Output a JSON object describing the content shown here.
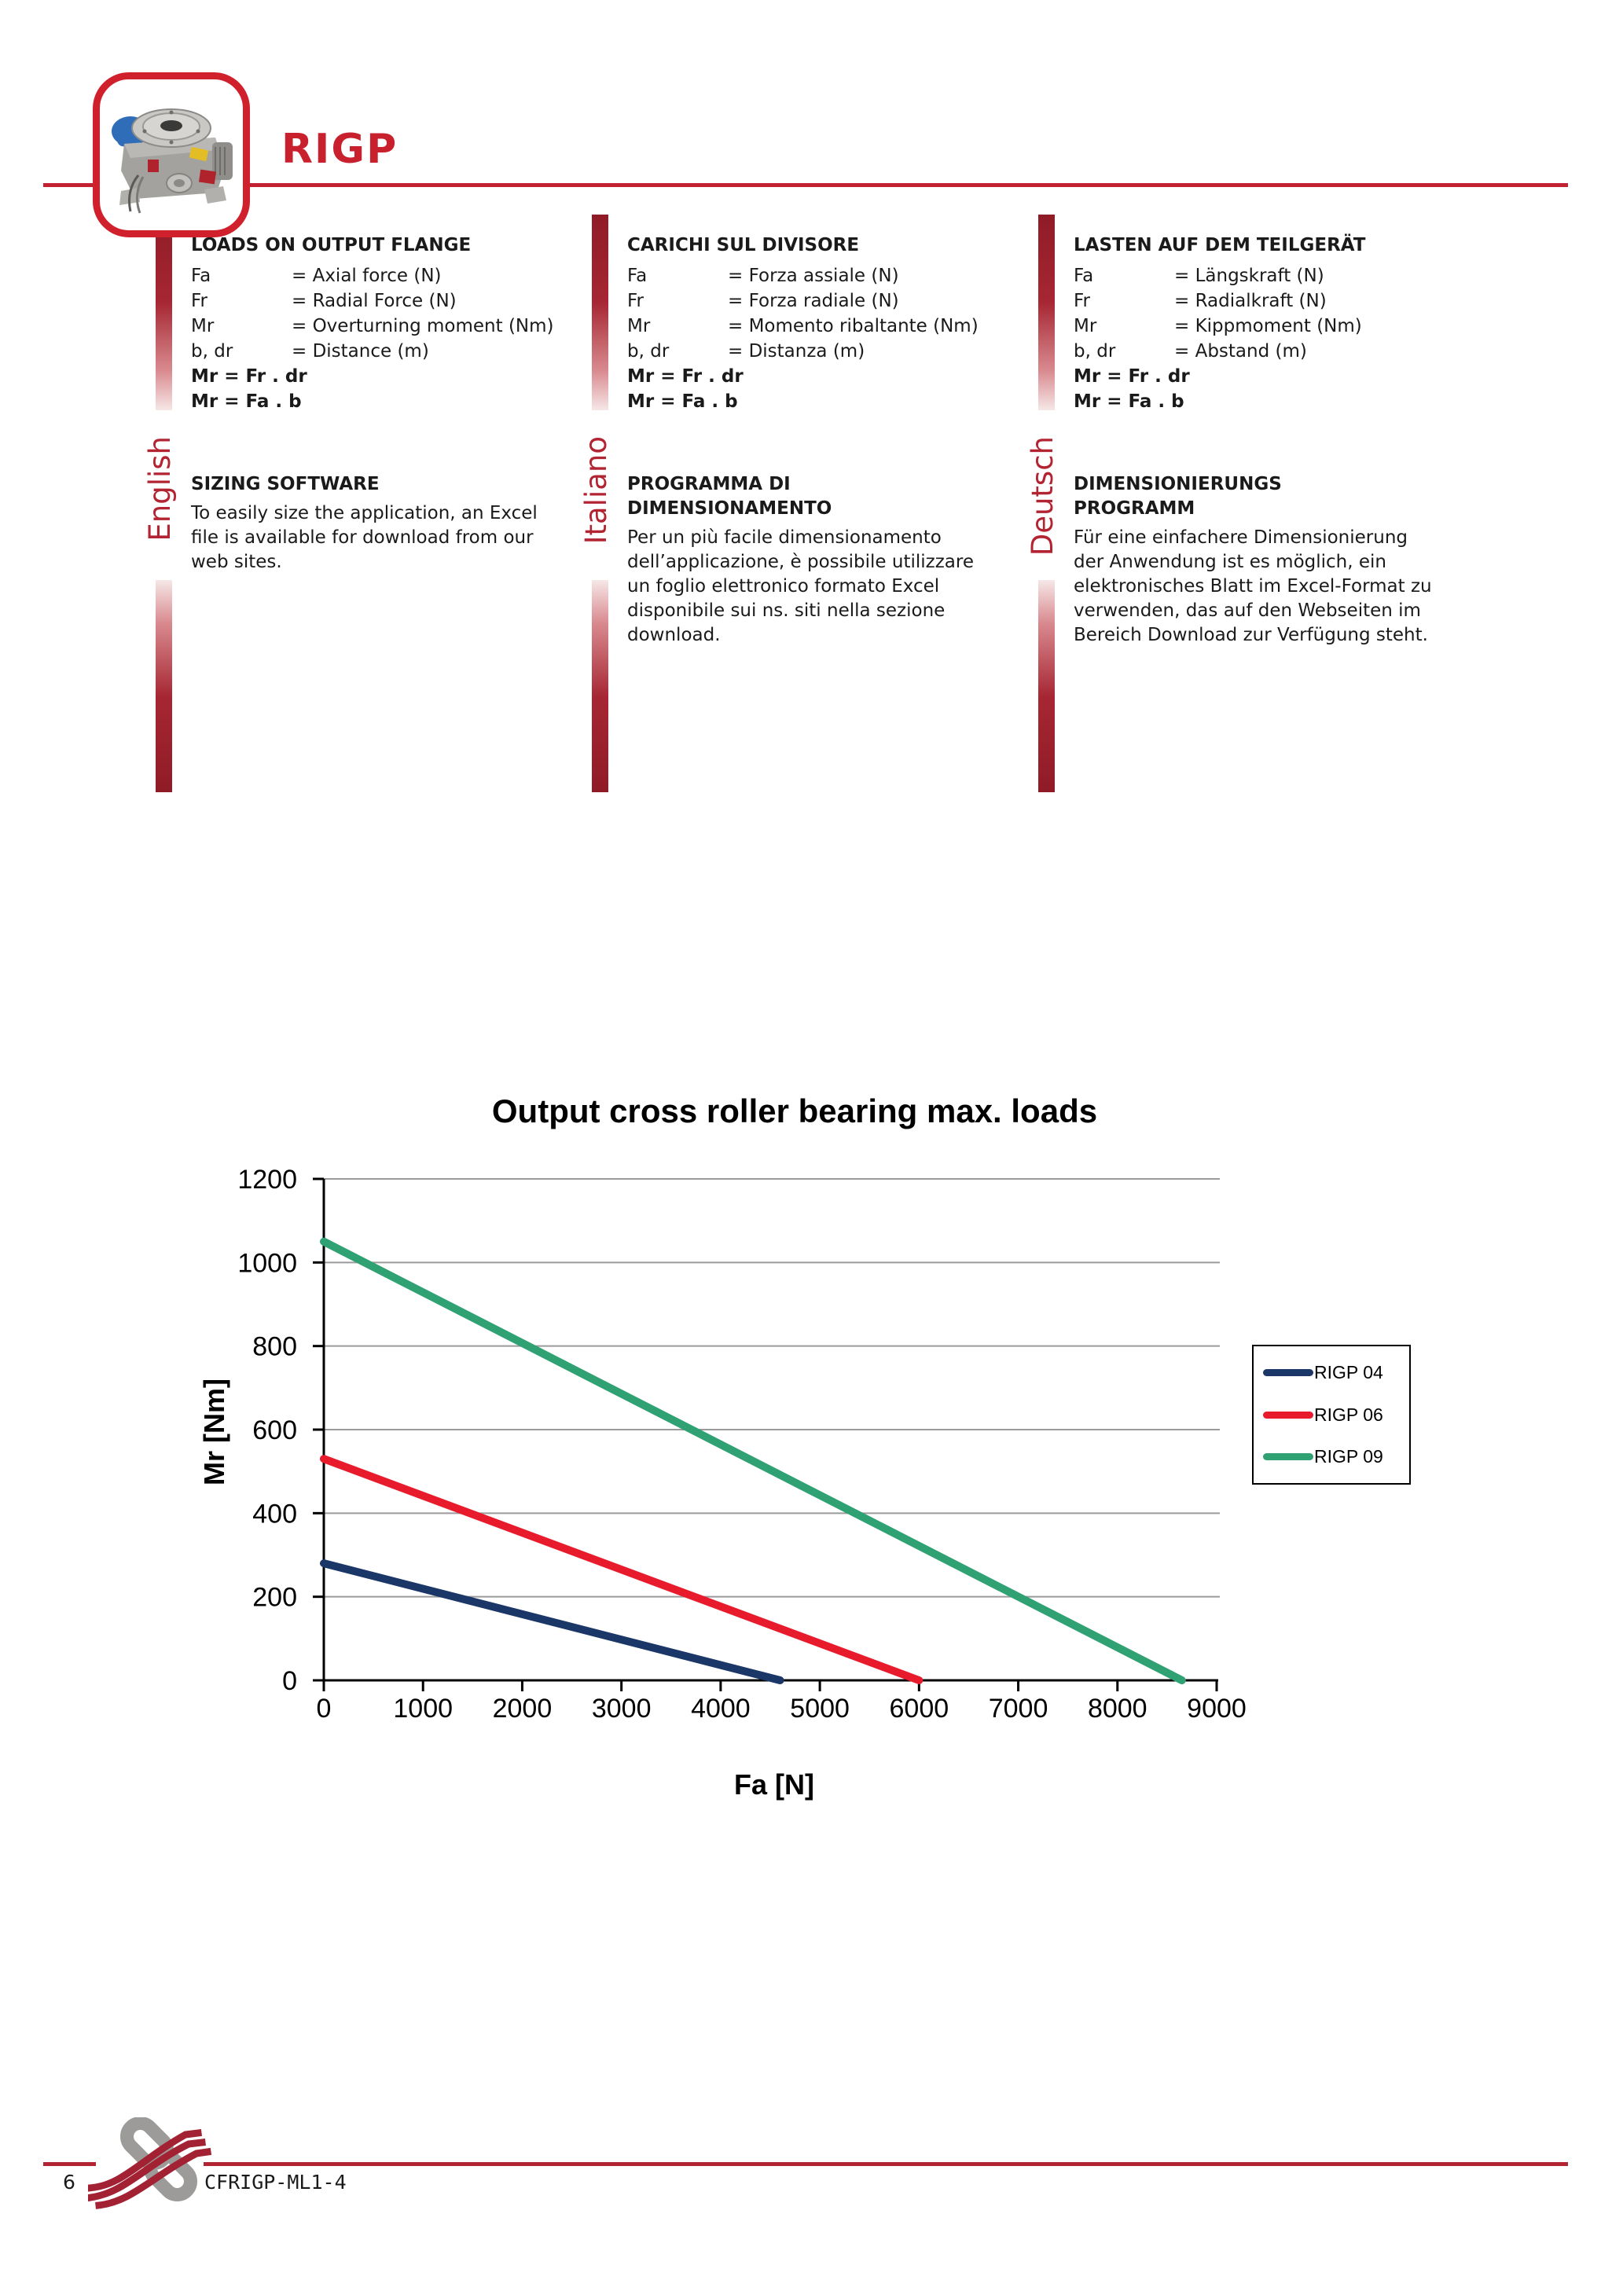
{
  "header": {
    "title": "RIGP"
  },
  "columns": [
    {
      "language": "English",
      "loads_heading": "LOADS ON OUTPUT FLANGE",
      "definitions": [
        {
          "symbol": "Fa",
          "meaning": "= Axial force (N)"
        },
        {
          "symbol": "Fr",
          "meaning": "= Radial Force (N)"
        },
        {
          "symbol": "Mr",
          "meaning": "= Overturning moment (Nm)"
        },
        {
          "symbol": "b, dr",
          "meaning": "= Distance (m)"
        }
      ],
      "formulas": [
        "Mr = Fr . dr",
        "Mr = Fa . b"
      ],
      "software_heading": "SIZING SOFTWARE",
      "software_text": "To easily size the application, an Excel\nfile is available for download from our\nweb sites."
    },
    {
      "language": "Italiano",
      "loads_heading": "CARICHI SUL DIVISORE",
      "definitions": [
        {
          "symbol": "Fa",
          "meaning": "= Forza assiale (N)"
        },
        {
          "symbol": "Fr",
          "meaning": "= Forza radiale (N)"
        },
        {
          "symbol": "Mr",
          "meaning": "= Momento ribaltante (Nm)"
        },
        {
          "symbol": "b, dr",
          "meaning": "= Distanza (m)"
        }
      ],
      "formulas": [
        "Mr = Fr . dr",
        "Mr = Fa . b"
      ],
      "software_heading": "PROGRAMMA DI\nDIMENSIONAMENTO",
      "software_text": "Per un più facile dimensionamento\ndell’applicazione, è possibile utilizzare\nun foglio elettronico formato Excel\ndisponibile sui ns. siti nella sezione\ndownload."
    },
    {
      "language": "Deutsch",
      "loads_heading": "LASTEN AUF DEM TEILGERÄT",
      "definitions": [
        {
          "symbol": "Fa",
          "meaning": "= Längskraft (N)"
        },
        {
          "symbol": "Fr",
          "meaning": "= Radialkraft (N)"
        },
        {
          "symbol": "Mr",
          "meaning": "= Kippmoment (Nm)"
        },
        {
          "symbol": "b, dr",
          "meaning": "= Abstand (m)"
        }
      ],
      "formulas": [
        "Mr = Fr . dr",
        "Mr = Fa . b"
      ],
      "software_heading": "DIMENSIONIERUNGS\nPROGRAMM",
      "software_text": "Für eine einfachere Dimensionierung\nder Anwendung ist es möglich, ein\nelektronisches Blatt im Excel-Format zu\nverwenden, das auf den Webseiten im\nBereich Download zur Verfügung steht."
    }
  ],
  "chart_data": {
    "type": "line",
    "title": "Output cross roller bearing max. loads",
    "xlabel": "Fa  [N]",
    "ylabel": "Mr  [Nm]",
    "xlim": [
      0,
      9000
    ],
    "xstep": 1000,
    "ylim": [
      0,
      1200
    ],
    "ystep": 200,
    "grid": true,
    "legend_position": "right",
    "gridline_color": "#9a9a9a",
    "series": [
      {
        "name": "RIGP 04",
        "color": "#1b3768",
        "points": [
          [
            0,
            280
          ],
          [
            4600,
            0
          ]
        ]
      },
      {
        "name": "RIGP 06",
        "color": "#e81b2d",
        "points": [
          [
            0,
            530
          ],
          [
            6000,
            0
          ]
        ]
      },
      {
        "name": "RIGP 09",
        "color": "#2fa173",
        "points": [
          [
            0,
            1050
          ],
          [
            8650,
            0
          ]
        ]
      }
    ]
  },
  "footer": {
    "page_number": "6",
    "doc_code": "CFRIGP-ML1-4"
  }
}
